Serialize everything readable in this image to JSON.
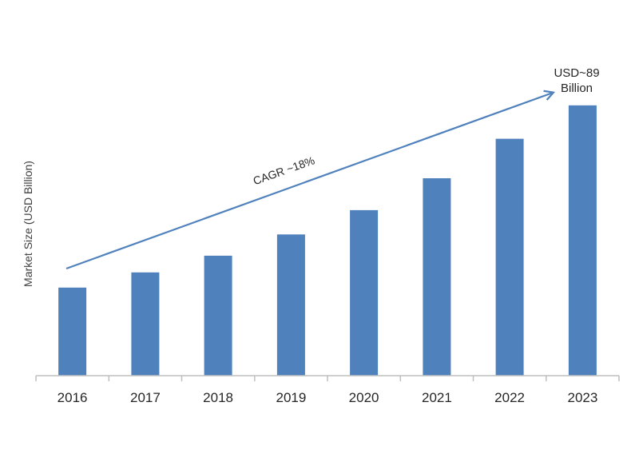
{
  "chart_data": {
    "type": "bar",
    "categories": [
      "2016",
      "2017",
      "2018",
      "2019",
      "2020",
      "2021",
      "2022",
      "2023"
    ],
    "values": [
      29,
      34,
      39.5,
      46.5,
      54.5,
      65,
      78,
      89
    ],
    "ylim": [
      0,
      100
    ],
    "xlabel": "",
    "ylabel": "Market Size (USD Billion)",
    "grid": false,
    "legend": "none",
    "bar_color": "#4f81bd",
    "axis_color": "#bfbfbf",
    "annotations": {
      "cagr_label": "CAGR ~18%",
      "end_label_line1": "USD~89",
      "end_label_line2": "Billion",
      "arrow_color": "#4f81bd"
    }
  }
}
